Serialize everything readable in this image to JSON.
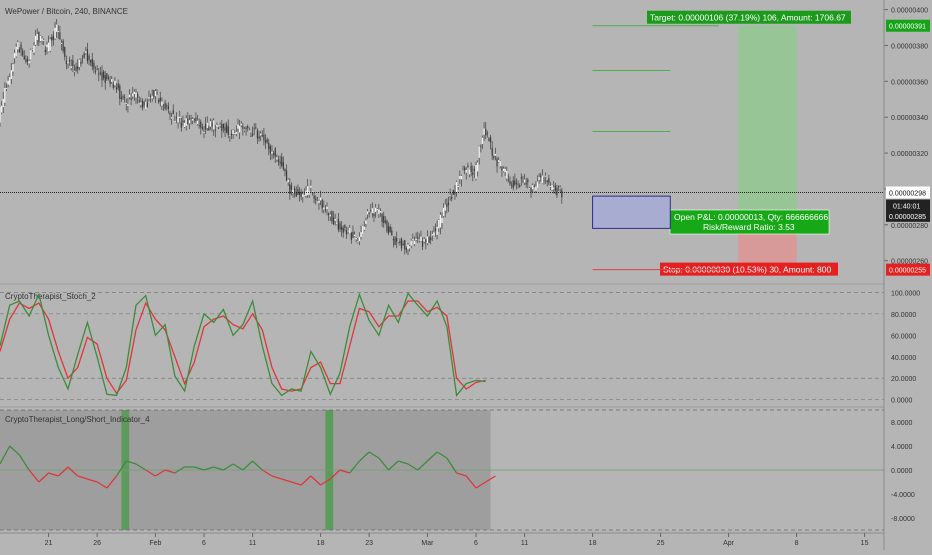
{
  "chart_data": {
    "type": "candlestick",
    "title": "WePower / Bitcoin, 240, BINANCE",
    "xaxis": {
      "ticks": [
        "21",
        "26",
        "Feb",
        "6",
        "11",
        "18",
        "23",
        "Mar",
        "6",
        "11",
        "18",
        "25",
        "Apr",
        "8",
        "15"
      ],
      "tick_days": [
        21,
        26,
        32,
        37,
        42,
        49,
        54,
        60,
        65,
        70,
        77,
        84,
        91,
        98,
        105
      ],
      "range_days": [
        16,
        107
      ]
    },
    "price_axis": {
      "ticks": [
        "0.00000400",
        "0.00000380",
        "0.00000360",
        "0.00000340",
        "0.00000320",
        "0.00000300",
        "0.00000280",
        "0.00000260"
      ],
      "tick_values": [
        400,
        380,
        360,
        340,
        320,
        300,
        280,
        260
      ],
      "unit_note": "prices in satoshi-scaled units (x1e-8 BTC)",
      "range": [
        252,
        402
      ]
    },
    "price_series": [
      {
        "day": 16,
        "close": 340
      },
      {
        "day": 17,
        "close": 360
      },
      {
        "day": 18,
        "close": 380
      },
      {
        "day": 19,
        "close": 372
      },
      {
        "day": 20,
        "close": 385
      },
      {
        "day": 21,
        "close": 378
      },
      {
        "day": 22,
        "close": 390
      },
      {
        "day": 23,
        "close": 370
      },
      {
        "day": 24,
        "close": 368
      },
      {
        "day": 25,
        "close": 375
      },
      {
        "day": 26,
        "close": 366
      },
      {
        "day": 27,
        "close": 362
      },
      {
        "day": 28,
        "close": 358
      },
      {
        "day": 29,
        "close": 348
      },
      {
        "day": 30,
        "close": 352
      },
      {
        "day": 31,
        "close": 345
      },
      {
        "day": 32,
        "close": 354
      },
      {
        "day": 33,
        "close": 346
      },
      {
        "day": 34,
        "close": 340
      },
      {
        "day": 35,
        "close": 336
      },
      {
        "day": 36,
        "close": 338
      },
      {
        "day": 37,
        "close": 333
      },
      {
        "day": 38,
        "close": 336
      },
      {
        "day": 39,
        "close": 334
      },
      {
        "day": 40,
        "close": 331
      },
      {
        "day": 41,
        "close": 334
      },
      {
        "day": 42,
        "close": 332
      },
      {
        "day": 43,
        "close": 330
      },
      {
        "day": 44,
        "close": 322
      },
      {
        "day": 45,
        "close": 315
      },
      {
        "day": 46,
        "close": 300
      },
      {
        "day": 47,
        "close": 296
      },
      {
        "day": 48,
        "close": 300
      },
      {
        "day": 49,
        "close": 294
      },
      {
        "day": 50,
        "close": 286
      },
      {
        "day": 51,
        "close": 280
      },
      {
        "day": 52,
        "close": 276
      },
      {
        "day": 53,
        "close": 272
      },
      {
        "day": 54,
        "close": 285
      },
      {
        "day": 55,
        "close": 288
      },
      {
        "day": 56,
        "close": 278
      },
      {
        "day": 57,
        "close": 270
      },
      {
        "day": 58,
        "close": 268
      },
      {
        "day": 59,
        "close": 272
      },
      {
        "day": 60,
        "close": 270
      },
      {
        "day": 61,
        "close": 276
      },
      {
        "day": 62,
        "close": 290
      },
      {
        "day": 63,
        "close": 300
      },
      {
        "day": 64,
        "close": 312
      },
      {
        "day": 65,
        "close": 308
      },
      {
        "day": 66,
        "close": 335
      },
      {
        "day": 67,
        "close": 318
      },
      {
        "day": 68,
        "close": 310
      },
      {
        "day": 69,
        "close": 302
      },
      {
        "day": 70,
        "close": 305
      },
      {
        "day": 71,
        "close": 300
      },
      {
        "day": 72,
        "close": 307
      },
      {
        "day": 73,
        "close": 300
      },
      {
        "day": 74,
        "close": 298
      }
    ],
    "current_price": "0.00000298",
    "current_value": 298,
    "countdown": "01:40:01",
    "entry_price": "0.00000285",
    "entry_value": 285,
    "target_price": "0.00000391",
    "target_value": 391,
    "stop_price": "0.00000255",
    "stop_value": 255,
    "position": {
      "start_day": 92,
      "end_day": 98,
      "target_label": "Target: 0.00000106 (37.19%) 106, Amount: 1706.67",
      "stop_label": "Stop: 0.00000030 (10.53%) 30, Amount: 800",
      "pnl_label_1": "Open P&L: 0.00000013, Qty: 666666666",
      "pnl_label_2": "Risk/Reward Ratio: 3.53"
    },
    "drawings": {
      "green_lines": [
        {
          "value": 391,
          "start_day": 77,
          "end_day": 90
        },
        {
          "value": 366,
          "start_day": 77,
          "end_day": 85
        },
        {
          "value": 332,
          "start_day": 77,
          "end_day": 85
        }
      ],
      "red_line": {
        "value": 255,
        "start_day": 77,
        "end_day": 91
      },
      "blue_rect": {
        "start_day": 77,
        "end_day": 85,
        "top_value": 296,
        "bottom_value": 278
      }
    },
    "stoch": {
      "label": "CryptoTherapist_Stoch_2",
      "ticks": [
        "100.0000",
        "80.0000",
        "60.0000",
        "40.0000",
        "20.0000",
        "0.0000"
      ],
      "tick_values": [
        100,
        80,
        60,
        40,
        20,
        0
      ],
      "range": [
        -4,
        105
      ],
      "k": [
        {
          "day": 16,
          "v": 50
        },
        {
          "day": 17,
          "v": 88
        },
        {
          "day": 18,
          "v": 92
        },
        {
          "day": 19,
          "v": 78
        },
        {
          "day": 20,
          "v": 98
        },
        {
          "day": 21,
          "v": 60
        },
        {
          "day": 22,
          "v": 30
        },
        {
          "day": 23,
          "v": 10
        },
        {
          "day": 24,
          "v": 42
        },
        {
          "day": 25,
          "v": 72
        },
        {
          "day": 26,
          "v": 40
        },
        {
          "day": 27,
          "v": 5
        },
        {
          "day": 28,
          "v": 4
        },
        {
          "day": 29,
          "v": 30
        },
        {
          "day": 30,
          "v": 88
        },
        {
          "day": 31,
          "v": 97
        },
        {
          "day": 32,
          "v": 60
        },
        {
          "day": 33,
          "v": 70
        },
        {
          "day": 34,
          "v": 22
        },
        {
          "day": 35,
          "v": 8
        },
        {
          "day": 36,
          "v": 50
        },
        {
          "day": 37,
          "v": 80
        },
        {
          "day": 38,
          "v": 72
        },
        {
          "day": 39,
          "v": 84
        },
        {
          "day": 40,
          "v": 60
        },
        {
          "day": 41,
          "v": 70
        },
        {
          "day": 42,
          "v": 92
        },
        {
          "day": 43,
          "v": 50
        },
        {
          "day": 44,
          "v": 15
        },
        {
          "day": 45,
          "v": 4
        },
        {
          "day": 46,
          "v": 10
        },
        {
          "day": 47,
          "v": 8
        },
        {
          "day": 48,
          "v": 45
        },
        {
          "day": 49,
          "v": 30
        },
        {
          "day": 50,
          "v": 5
        },
        {
          "day": 51,
          "v": 25
        },
        {
          "day": 52,
          "v": 68
        },
        {
          "day": 53,
          "v": 98
        },
        {
          "day": 54,
          "v": 74
        },
        {
          "day": 55,
          "v": 60
        },
        {
          "day": 56,
          "v": 88
        },
        {
          "day": 57,
          "v": 72
        },
        {
          "day": 58,
          "v": 99
        },
        {
          "day": 59,
          "v": 88
        },
        {
          "day": 60,
          "v": 78
        },
        {
          "day": 61,
          "v": 92
        },
        {
          "day": 62,
          "v": 68
        },
        {
          "day": 63,
          "v": 4
        },
        {
          "day": 64,
          "v": 15
        },
        {
          "day": 65,
          "v": 18
        },
        {
          "day": 66,
          "v": 17
        }
      ],
      "d": [
        {
          "day": 16,
          "v": 45
        },
        {
          "day": 17,
          "v": 75
        },
        {
          "day": 18,
          "v": 90
        },
        {
          "day": 19,
          "v": 85
        },
        {
          "day": 20,
          "v": 90
        },
        {
          "day": 21,
          "v": 75
        },
        {
          "day": 22,
          "v": 45
        },
        {
          "day": 23,
          "v": 20
        },
        {
          "day": 24,
          "v": 30
        },
        {
          "day": 25,
          "v": 58
        },
        {
          "day": 26,
          "v": 52
        },
        {
          "day": 27,
          "v": 20
        },
        {
          "day": 28,
          "v": 6
        },
        {
          "day": 29,
          "v": 18
        },
        {
          "day": 30,
          "v": 65
        },
        {
          "day": 31,
          "v": 90
        },
        {
          "day": 32,
          "v": 75
        },
        {
          "day": 33,
          "v": 65
        },
        {
          "day": 34,
          "v": 40
        },
        {
          "day": 35,
          "v": 15
        },
        {
          "day": 36,
          "v": 35
        },
        {
          "day": 37,
          "v": 68
        },
        {
          "day": 38,
          "v": 75
        },
        {
          "day": 39,
          "v": 78
        },
        {
          "day": 40,
          "v": 70
        },
        {
          "day": 41,
          "v": 66
        },
        {
          "day": 42,
          "v": 80
        },
        {
          "day": 43,
          "v": 65
        },
        {
          "day": 44,
          "v": 30
        },
        {
          "day": 45,
          "v": 10
        },
        {
          "day": 46,
          "v": 8
        },
        {
          "day": 47,
          "v": 10
        },
        {
          "day": 48,
          "v": 30
        },
        {
          "day": 49,
          "v": 35
        },
        {
          "day": 50,
          "v": 15
        },
        {
          "day": 51,
          "v": 15
        },
        {
          "day": 52,
          "v": 50
        },
        {
          "day": 53,
          "v": 85
        },
        {
          "day": 54,
          "v": 82
        },
        {
          "day": 55,
          "v": 68
        },
        {
          "day": 56,
          "v": 78
        },
        {
          "day": 57,
          "v": 78
        },
        {
          "day": 58,
          "v": 92
        },
        {
          "day": 59,
          "v": 92
        },
        {
          "day": 60,
          "v": 82
        },
        {
          "day": 61,
          "v": 86
        },
        {
          "day": 62,
          "v": 78
        },
        {
          "day": 63,
          "v": 20
        },
        {
          "day": 64,
          "v": 10
        },
        {
          "day": 65,
          "v": 16
        },
        {
          "day": 66,
          "v": 18
        }
      ]
    },
    "longshort": {
      "label": "CryptoTherapist_Long/Short_Indicator_4",
      "ticks": [
        "8.0000",
        "4.0000",
        "0.0000",
        "-4.0000",
        "-8.0000"
      ],
      "tick_values": [
        8,
        4,
        0,
        -4,
        -8
      ],
      "range": [
        -10,
        10
      ],
      "series": [
        {
          "day": 16,
          "v": 1
        },
        {
          "day": 17,
          "v": 4
        },
        {
          "day": 18,
          "v": 2.5
        },
        {
          "day": 19,
          "v": 0
        },
        {
          "day": 20,
          "v": -2
        },
        {
          "day": 21,
          "v": -0.5
        },
        {
          "day": 22,
          "v": -1
        },
        {
          "day": 23,
          "v": 0.5
        },
        {
          "day": 24,
          "v": -1
        },
        {
          "day": 25,
          "v": -1.5
        },
        {
          "day": 26,
          "v": -2
        },
        {
          "day": 27,
          "v": -3
        },
        {
          "day": 28,
          "v": -1
        },
        {
          "day": 29,
          "v": 1.5
        },
        {
          "day": 30,
          "v": 1
        },
        {
          "day": 31,
          "v": 0
        },
        {
          "day": 32,
          "v": -1
        },
        {
          "day": 33,
          "v": 0
        },
        {
          "day": 34,
          "v": -0.5
        },
        {
          "day": 35,
          "v": 0.5
        },
        {
          "day": 36,
          "v": 0.5
        },
        {
          "day": 37,
          "v": 0
        },
        {
          "day": 38,
          "v": 0.5
        },
        {
          "day": 39,
          "v": 0
        },
        {
          "day": 40,
          "v": 1
        },
        {
          "day": 41,
          "v": 0
        },
        {
          "day": 42,
          "v": 1.5
        },
        {
          "day": 43,
          "v": 0
        },
        {
          "day": 44,
          "v": -1
        },
        {
          "day": 45,
          "v": -1.5
        },
        {
          "day": 46,
          "v": -2
        },
        {
          "day": 47,
          "v": -2.5
        },
        {
          "day": 48,
          "v": -1
        },
        {
          "day": 49,
          "v": -2.5
        },
        {
          "day": 50,
          "v": -1.5
        },
        {
          "day": 51,
          "v": 0
        },
        {
          "day": 52,
          "v": -0.5
        },
        {
          "day": 53,
          "v": 1.5
        },
        {
          "day": 54,
          "v": 3
        },
        {
          "day": 55,
          "v": 2
        },
        {
          "day": 56,
          "v": 0
        },
        {
          "day": 57,
          "v": 1.5
        },
        {
          "day": 58,
          "v": 1
        },
        {
          "day": 59,
          "v": 0
        },
        {
          "day": 60,
          "v": 1.5
        },
        {
          "day": 61,
          "v": 3
        },
        {
          "day": 62,
          "v": 2
        },
        {
          "day": 63,
          "v": -0.5
        },
        {
          "day": 64,
          "v": -1
        },
        {
          "day": 65,
          "v": -3
        },
        {
          "day": 66,
          "v": -2
        },
        {
          "day": 67,
          "v": -1
        }
      ]
    },
    "colors": {
      "background": "#b5b5b5",
      "bull": "#3c8c3c",
      "bear": "#e0353b",
      "target_bg": "#97c596",
      "stop_bg": "#d79a98",
      "green_line": "#4caf4c",
      "label_green": "#1c9a1c",
      "label_red": "#e42020"
    }
  }
}
